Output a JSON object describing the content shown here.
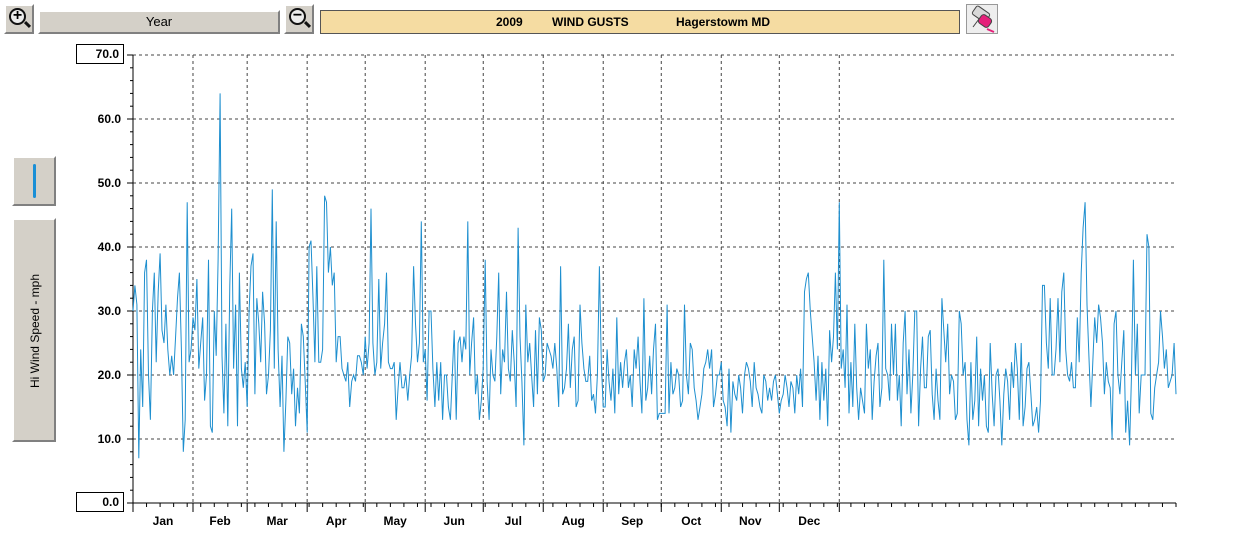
{
  "toolbar": {
    "zoom_in_symbol": "+",
    "zoom_out_symbol": "−",
    "period_label": "Year",
    "title_year": "2009",
    "title_metric": "WIND GUSTS",
    "title_location": "Hagerstowm MD",
    "erase_icon": "eraser-icon",
    "zoom_in_icon": "magnifier-plus-icon",
    "zoom_out_icon": "magnifier-minus-icon"
  },
  "sidepanel": {
    "line_style_icon": "line-style-icon",
    "ylabel": "Hi Wind Speed - mph"
  },
  "chart_data": {
    "type": "line",
    "xlabel": "",
    "ylabel": "Hi Wind Speed - mph",
    "ylim": [
      0,
      70
    ],
    "yticks": [
      "0.0",
      "10.0",
      "20.0",
      "30.0",
      "40.0",
      "50.0",
      "60.0",
      "70.0"
    ],
    "ymax_label": "70.0",
    "ymin_label": "0.0",
    "grid": true,
    "months": [
      "Jan",
      "Feb",
      "Mar",
      "Apr",
      "May",
      "Jun",
      "Jul",
      "Aug",
      "Sep",
      "Oct",
      "Nov",
      "Dec"
    ],
    "line_color": "#1e8fcf",
    "series": [
      {
        "values": [
          30,
          34,
          31,
          7,
          24,
          15,
          36,
          38,
          20,
          13,
          30,
          36,
          22,
          33,
          39,
          27,
          25,
          31,
          24,
          20,
          23,
          20,
          26,
          32,
          36,
          24,
          8,
          13,
          47,
          22,
          24,
          29,
          27,
          35,
          21,
          25,
          29,
          16,
          20,
          38,
          12,
          11,
          30,
          23,
          38,
          64,
          23,
          14,
          28,
          12,
          34,
          46,
          21,
          31,
          12,
          36,
          21,
          18,
          22,
          15,
          30,
          37,
          39,
          17,
          32,
          28,
          22,
          33,
          28,
          17,
          20,
          27,
          49,
          21,
          44,
          24,
          15,
          23,
          8,
          16,
          26,
          25,
          17,
          21,
          12,
          18,
          14,
          28,
          26,
          19,
          11,
          40,
          41,
          32,
          22,
          37,
          22,
          22,
          24,
          48,
          47,
          36,
          40,
          34,
          36,
          22,
          26,
          26,
          21,
          20,
          19,
          22,
          15,
          19,
          20,
          19,
          23,
          23,
          22,
          20,
          26,
          21,
          25,
          46,
          25,
          20,
          22,
          35,
          21,
          25,
          28,
          36,
          22,
          21,
          21,
          22,
          13,
          18,
          22,
          18,
          18,
          20,
          16,
          20,
          23,
          37,
          28,
          22,
          25,
          44,
          22,
          24,
          16,
          30,
          30,
          21,
          15,
          22,
          16,
          22,
          13,
          20,
          20,
          15,
          13,
          20,
          27,
          13,
          25,
          26,
          22,
          26,
          24,
          44,
          20,
          25,
          29,
          17,
          20,
          13,
          16,
          21,
          38,
          19,
          13,
          24,
          20,
          19,
          26,
          36,
          17,
          24,
          22,
          33,
          21,
          19,
          27,
          22,
          15,
          43,
          26,
          19,
          9,
          31,
          22,
          25,
          20,
          15,
          27,
          17,
          29,
          27,
          19,
          20,
          25,
          24,
          23,
          21,
          25,
          21,
          15,
          37,
          17,
          18,
          21,
          28,
          18,
          24,
          26,
          15,
          16,
          31,
          25,
          21,
          19,
          19,
          23,
          16,
          17,
          14,
          20,
          37,
          22,
          15,
          15,
          24,
          19,
          16,
          21,
          14,
          29,
          17,
          22,
          18,
          22,
          24,
          18,
          20,
          15,
          24,
          21,
          26,
          19,
          14,
          32,
          16,
          18,
          23,
          17,
          24,
          28,
          13,
          14,
          14,
          14,
          14,
          31,
          14,
          22,
          17,
          18,
          21,
          20,
          15,
          16,
          31,
          20,
          17,
          25,
          24,
          18,
          16,
          13,
          15,
          17,
          21,
          22,
          24,
          21,
          24,
          15,
          17,
          20,
          20,
          22,
          16,
          15,
          12,
          21,
          11,
          19,
          17,
          16,
          20,
          18,
          14,
          20,
          22,
          21,
          19,
          15,
          22,
          18,
          17,
          15,
          14,
          20,
          19,
          16,
          18,
          16,
          19,
          20,
          17,
          14,
          16,
          17,
          20,
          18,
          15,
          19,
          18,
          14,
          20,
          17,
          21,
          15,
          33,
          35,
          36,
          30,
          26,
          22,
          16,
          23,
          13,
          22,
          16,
          21,
          12,
          27,
          22,
          26,
          36,
          24,
          47,
          21,
          24,
          18,
          31,
          14,
          22,
          15,
          28,
          18,
          13,
          18,
          16,
          14,
          28,
          21,
          24,
          13,
          19,
          23,
          25,
          15,
          18,
          38,
          21,
          20,
          16,
          28,
          20,
          28,
          16,
          20,
          12,
          25,
          30,
          17,
          24,
          14,
          20,
          30,
          30,
          12,
          21,
          26,
          18,
          18,
          26,
          27,
          17,
          13,
          21,
          16,
          13,
          32,
          27,
          22,
          28,
          17,
          20,
          19,
          13,
          14,
          30,
          28,
          20,
          22,
          13,
          9,
          22,
          13,
          16,
          26,
          12,
          21,
          16,
          20,
          12,
          11,
          25,
          17,
          12,
          20,
          21,
          16,
          9,
          17,
          21,
          19,
          13,
          22,
          18,
          25,
          21,
          13,
          25,
          12,
          15,
          21,
          22,
          17,
          12,
          13,
          15,
          11,
          16,
          34,
          34,
          25,
          21,
          32,
          20,
          20,
          24,
          32,
          22,
          33,
          36,
          24,
          20,
          19,
          22,
          18,
          18,
          29,
          22,
          36,
          43,
          47,
          31,
          23,
          15,
          22,
          29,
          25,
          31,
          29,
          25,
          17,
          22,
          19,
          18,
          10,
          28,
          30,
          20,
          17,
          22,
          27,
          11,
          16,
          9,
          20,
          38,
          20,
          28,
          14,
          20,
          20,
          20,
          42,
          40,
          14,
          13,
          18,
          20,
          22,
          30,
          26,
          21,
          24,
          18,
          19,
          20,
          25,
          17
        ]
      }
    ]
  }
}
